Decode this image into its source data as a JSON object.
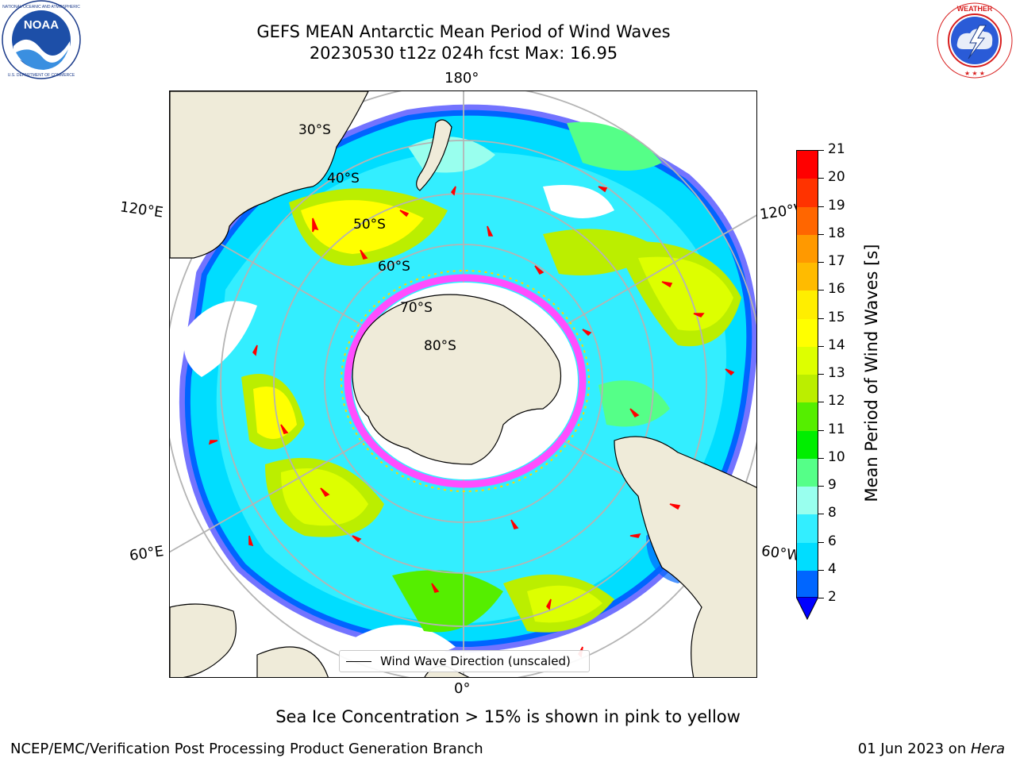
{
  "header": {
    "title_line1": "GEFS MEAN Antarctic Mean Period of Wind Waves",
    "title_line2": "20230530 t12z 024h fcst   Max: 16.95"
  },
  "logos": {
    "left": {
      "name": "NOAA",
      "ring_text_top": "NATIONAL OCEANIC AND ATMOSPHERIC ADMINISTRATION",
      "ring_text_bottom": "U.S. DEPARTMENT OF COMMERCE"
    },
    "right": {
      "ring_text": "NATIONAL WEATHER SERVICE"
    }
  },
  "map": {
    "projection": "south-polar-stereographic",
    "longitude_labels": {
      "top": "180°",
      "bottom": "0°",
      "left_upper": "120°E",
      "left_lower": "60°E",
      "right_upper": "120°W",
      "right_lower": "60°W"
    },
    "latitude_labels": [
      "30°S",
      "40°S",
      "50°S",
      "60°S",
      "70°S",
      "80°S"
    ],
    "colors": {
      "land": "#efebd9",
      "ocean_no_data": "#ffffff",
      "graticule": "#b4b4b4",
      "arrow": "#ff0000",
      "sea_ice_low": "#ff4dff",
      "sea_ice_high": "#ffd700"
    }
  },
  "legend": {
    "label": "Wind Wave Direction (unscaled)"
  },
  "colorbar": {
    "title": "Mean Period of Wind Waves [s]",
    "ticks": [
      "2",
      "4",
      "6",
      "8",
      "9",
      "10",
      "11",
      "12",
      "13",
      "14",
      "15",
      "16",
      "17",
      "18",
      "19",
      "20",
      "21"
    ],
    "bins": [
      {
        "from": 2,
        "to": 4,
        "color": "#0066ff"
      },
      {
        "from": 4,
        "to": 6,
        "color": "#00ddff"
      },
      {
        "from": 6,
        "to": 8,
        "color": "#33eeff"
      },
      {
        "from": 8,
        "to": 9,
        "color": "#99ffee"
      },
      {
        "from": 9,
        "to": 10,
        "color": "#55ff88"
      },
      {
        "from": 10,
        "to": 11,
        "color": "#00ee00"
      },
      {
        "from": 11,
        "to": 12,
        "color": "#55ee00"
      },
      {
        "from": 12,
        "to": 13,
        "color": "#bbee00"
      },
      {
        "from": 13,
        "to": 14,
        "color": "#ddff00"
      },
      {
        "from": 14,
        "to": 15,
        "color": "#ffff00"
      },
      {
        "from": 15,
        "to": 16,
        "color": "#ffee00"
      },
      {
        "from": 16,
        "to": 17,
        "color": "#ffbb00"
      },
      {
        "from": 17,
        "to": 18,
        "color": "#ff9900"
      },
      {
        "from": 18,
        "to": 19,
        "color": "#ff6600"
      },
      {
        "from": 19,
        "to": 20,
        "color": "#ff3300"
      },
      {
        "from": 20,
        "to": 21,
        "color": "#ff0000"
      }
    ],
    "under_color": "#0000ff"
  },
  "caption": "Sea Ice Concentration > 15% is shown in pink to yellow",
  "footer": {
    "left": "NCEP/EMC/Verification Post Processing Product Generation Branch",
    "right_date": "01 Jun 2023 on ",
    "right_machine": "Hera"
  }
}
